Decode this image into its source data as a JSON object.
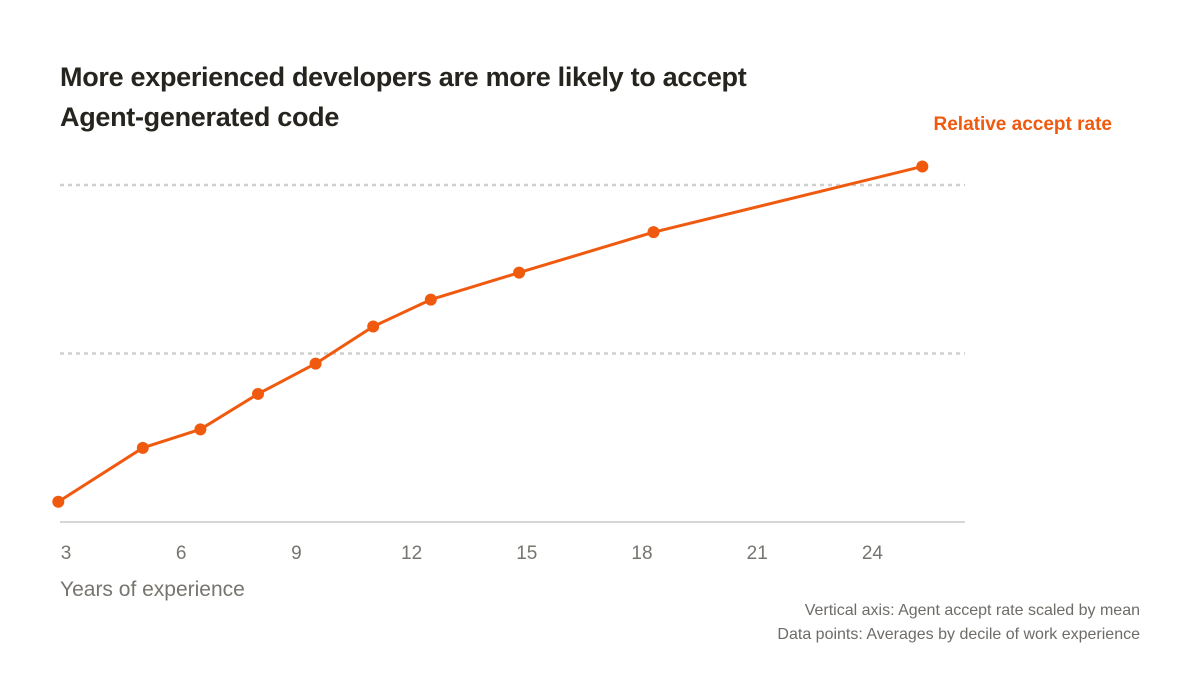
{
  "chart_data": {
    "type": "line",
    "title": "More experienced developers are more likely to accept Agent-generated code",
    "xlabel": "Years of experience",
    "ylabel": "",
    "xticks": [
      3,
      6,
      9,
      12,
      15,
      18,
      21,
      24
    ],
    "xlim": [
      2.8,
      26.5
    ],
    "ylim": [
      0,
      2.2
    ],
    "ygrid": [
      1,
      2
    ],
    "grid": true,
    "y_tick_labels_shown": false,
    "legend": "top-right",
    "series": [
      {
        "name": "Relative accept rate",
        "color": "#f05a0f",
        "x": [
          2.8,
          5.0,
          6.5,
          8.0,
          9.5,
          11.0,
          12.5,
          14.8,
          18.3,
          25.3
        ],
        "values": [
          0.12,
          0.44,
          0.55,
          0.76,
          0.94,
          1.16,
          1.32,
          1.48,
          1.72,
          2.11
        ]
      }
    ],
    "notes": [
      "Vertical axis: Agent accept rate scaled by mean",
      "Data points: Averages by decile of work experience"
    ]
  },
  "colors": {
    "accent": "#f05a0f",
    "title": "#26241f",
    "muted_text": "#77756f",
    "grid": "#cfcfcf",
    "axis": "#d6d6d6"
  }
}
